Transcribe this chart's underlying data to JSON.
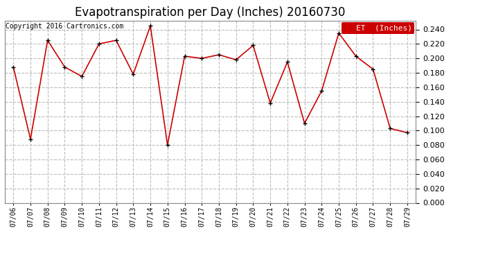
{
  "title": "Evapotranspiration per Day (Inches) 20160730",
  "copyright_text": "Copyright 2016 Cartronics.com",
  "legend_label": "ET  (Inches)",
  "dates": [
    "07/06",
    "07/07",
    "07/08",
    "07/09",
    "07/10",
    "07/11",
    "07/12",
    "07/13",
    "07/14",
    "07/15",
    "07/16",
    "07/17",
    "07/18",
    "07/19",
    "07/20",
    "07/21",
    "07/22",
    "07/23",
    "07/24",
    "07/25",
    "07/26",
    "07/27",
    "07/28",
    "07/29"
  ],
  "values": [
    0.188,
    0.088,
    0.225,
    0.188,
    0.175,
    0.22,
    0.225,
    0.178,
    0.245,
    0.08,
    0.203,
    0.2,
    0.205,
    0.198,
    0.218,
    0.138,
    0.195,
    0.11,
    0.155,
    0.235,
    0.203,
    0.185,
    0.103,
    0.097
  ],
  "ylim": [
    0.0,
    0.252
  ],
  "yticks": [
    0.0,
    0.02,
    0.04,
    0.06,
    0.08,
    0.1,
    0.12,
    0.14,
    0.16,
    0.18,
    0.2,
    0.22,
    0.24
  ],
  "line_color": "#cc0000",
  "marker_color": "#000000",
  "grid_color": "#bbbbbb",
  "bg_color": "#ffffff",
  "title_fontsize": 12,
  "copyright_fontsize": 7,
  "copyright_color": "#000000",
  "legend_bg": "#cc0000",
  "legend_text_color": "#ffffff",
  "legend_fontsize": 8,
  "tick_fontsize": 8,
  "xtick_fontsize": 7
}
